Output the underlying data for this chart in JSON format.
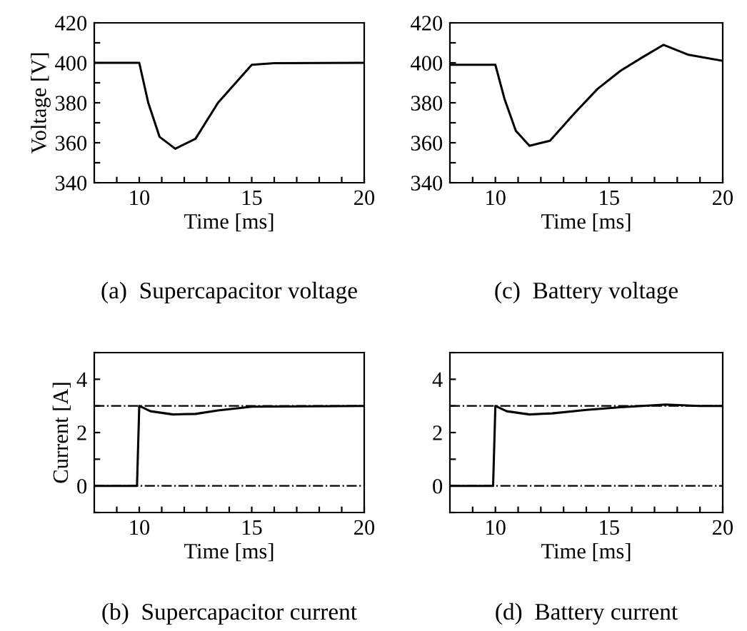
{
  "chart_data": [
    {
      "type": "line",
      "title": "(a)  Supercapacitor voltage",
      "xlabel": "Time [ms]",
      "ylabel": "Voltage [V]",
      "xlim": [
        8,
        20
      ],
      "ylim": [
        340,
        420
      ],
      "xticks": [
        {
          "value": 9,
          "label": null
        },
        10,
        {
          "value": 11,
          "label": null
        },
        {
          "value": 12,
          "label": null
        },
        {
          "value": 13,
          "label": null
        },
        {
          "value": 14,
          "label": null
        },
        15,
        {
          "value": 16,
          "label": null
        },
        {
          "value": 17,
          "label": null
        },
        {
          "value": 18,
          "label": null
        },
        {
          "value": 19,
          "label": null
        },
        20
      ],
      "yticks": [
        340,
        {
          "value": 350,
          "label": null
        },
        360,
        {
          "value": 370,
          "label": null
        },
        380,
        {
          "value": 390,
          "label": null
        },
        400,
        {
          "value": 410,
          "label": null
        },
        420
      ],
      "series": [
        {
          "color": "#000000",
          "x": [
            8,
            10,
            10.4,
            10.9,
            11.6,
            12.5,
            13.5,
            15,
            16,
            20
          ],
          "values": [
            400,
            400,
            380,
            363,
            357,
            362,
            380,
            399,
            399.8,
            400
          ]
        }
      ]
    },
    {
      "type": "line",
      "title": "(c)  Battery voltage",
      "xlabel": "Time [ms]",
      "xlim": [
        8,
        20
      ],
      "ylim": [
        340,
        420
      ],
      "xticks": [
        {
          "value": 9,
          "label": null
        },
        10,
        {
          "value": 11,
          "label": null
        },
        {
          "value": 12,
          "label": null
        },
        {
          "value": 13,
          "label": null
        },
        {
          "value": 14,
          "label": null
        },
        15,
        {
          "value": 16,
          "label": null
        },
        {
          "value": 17,
          "label": null
        },
        {
          "value": 18,
          "label": null
        },
        {
          "value": 19,
          "label": null
        },
        20
      ],
      "yticks": [
        340,
        {
          "value": 350,
          "label": null
        },
        360,
        {
          "value": 370,
          "label": null
        },
        380,
        {
          "value": 390,
          "label": null
        },
        400,
        {
          "value": 410,
          "label": null
        },
        420
      ],
      "series": [
        {
          "color": "#000000",
          "x": [
            8,
            10,
            10.4,
            10.9,
            11.5,
            12.4,
            13.5,
            14.5,
            15.5,
            16.5,
            17.4,
            18.5,
            20
          ],
          "values": [
            399,
            399,
            382,
            366,
            358.5,
            361,
            375,
            387,
            396,
            403,
            409,
            404,
            401
          ]
        }
      ]
    },
    {
      "type": "line",
      "title": "(b)  Supercapacitor current",
      "xlabel": "Time [ms]",
      "ylabel": "Current [A]",
      "xlim": [
        8,
        20
      ],
      "ylim": [
        -1,
        5
      ],
      "xticks": [
        {
          "value": 9,
          "label": null
        },
        10,
        {
          "value": 11,
          "label": null
        },
        {
          "value": 12,
          "label": null
        },
        {
          "value": 13,
          "label": null
        },
        {
          "value": 14,
          "label": null
        },
        15,
        {
          "value": 16,
          "label": null
        },
        {
          "value": 17,
          "label": null
        },
        {
          "value": 18,
          "label": null
        },
        {
          "value": 19,
          "label": null
        },
        20
      ],
      "yticks": [
        {
          "value": -1,
          "label": null
        },
        0,
        {
          "value": 1,
          "label": null
        },
        2,
        {
          "value": 3,
          "label": null
        },
        4,
        {
          "value": 5,
          "label": null
        }
      ],
      "ref_lines": [
        {
          "axis": "y",
          "value": 0,
          "line_style": "dashdot",
          "color": "#000000"
        },
        {
          "axis": "y",
          "value": 3,
          "line_style": "dashdot",
          "color": "#000000"
        }
      ],
      "series": [
        {
          "color": "#000000",
          "x": [
            8,
            9.9,
            10,
            10.5,
            11.5,
            12.5,
            13.5,
            15,
            20
          ],
          "values": [
            0,
            0,
            3,
            2.8,
            2.68,
            2.7,
            2.83,
            2.97,
            3
          ]
        }
      ]
    },
    {
      "type": "line",
      "title": "(d)  Battery current",
      "xlabel": "Time [ms]",
      "xlim": [
        8,
        20
      ],
      "ylim": [
        -1,
        5
      ],
      "xticks": [
        {
          "value": 9,
          "label": null
        },
        10,
        {
          "value": 11,
          "label": null
        },
        {
          "value": 12,
          "label": null
        },
        {
          "value": 13,
          "label": null
        },
        {
          "value": 14,
          "label": null
        },
        15,
        {
          "value": 16,
          "label": null
        },
        {
          "value": 17,
          "label": null
        },
        {
          "value": 18,
          "label": null
        },
        {
          "value": 19,
          "label": null
        },
        20
      ],
      "yticks": [
        {
          "value": -1,
          "label": null
        },
        0,
        {
          "value": 1,
          "label": null
        },
        2,
        {
          "value": 3,
          "label": null
        },
        4,
        {
          "value": 5,
          "label": null
        }
      ],
      "ref_lines": [
        {
          "axis": "y",
          "value": 0,
          "line_style": "dashdot",
          "color": "#000000"
        },
        {
          "axis": "y",
          "value": 3,
          "line_style": "dashdot",
          "color": "#000000"
        }
      ],
      "series": [
        {
          "color": "#000000",
          "x": [
            8,
            9.9,
            10,
            10.5,
            11.5,
            12.5,
            14,
            15.5,
            17.5,
            19,
            20
          ],
          "values": [
            0,
            0,
            3,
            2.8,
            2.68,
            2.72,
            2.85,
            2.95,
            3.05,
            3.0,
            3
          ]
        }
      ]
    }
  ]
}
